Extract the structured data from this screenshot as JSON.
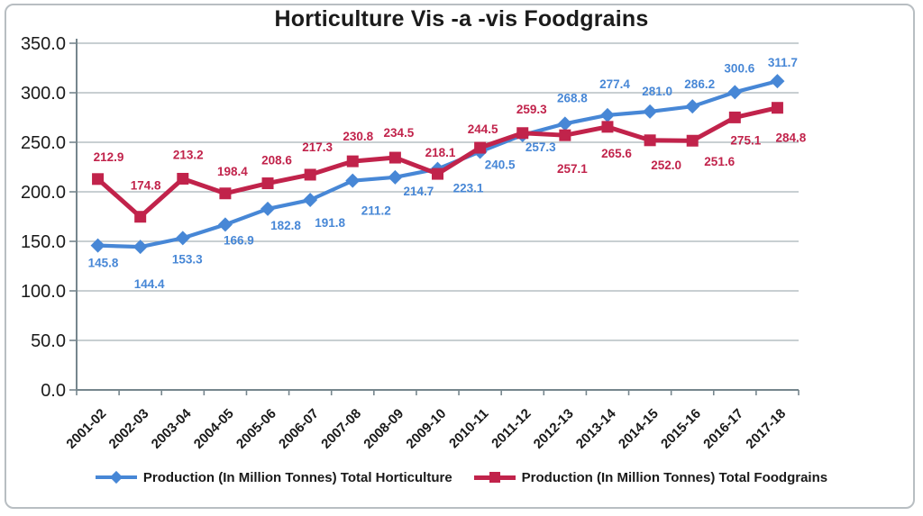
{
  "title": "Horticulture Vis -a -vis Foodgrains",
  "chart_data": {
    "type": "line",
    "title": "Horticulture Vis -a -vis Foodgrains",
    "categories": [
      "2001-02",
      "2002-03",
      "2003-04",
      "2004-05",
      "2005-06",
      "2006-07",
      "2007-08",
      "2008-09",
      "2009-10",
      "2010-11",
      "2011-12",
      "2012-13",
      "2013-14",
      "2014-15",
      "2015-16",
      "2016-17",
      "2017-18"
    ],
    "series": [
      {
        "key": "horticulture",
        "name": "Production (In Million Tonnes) Total Horticulture",
        "color": "#4787D6",
        "marker": "diamond",
        "values": [
          145.8,
          144.4,
          153.3,
          166.9,
          182.8,
          191.8,
          211.2,
          214.7,
          223.1,
          240.5,
          257.3,
          268.8,
          277.4,
          281.0,
          286.2,
          300.6,
          311.7
        ]
      },
      {
        "key": "foodgrains",
        "name": "Production (In Million Tonnes) Total Foodgrains",
        "color": "#C1234B",
        "marker": "square",
        "values": [
          212.9,
          174.8,
          213.2,
          198.4,
          208.6,
          217.3,
          230.8,
          234.5,
          218.1,
          244.5,
          259.3,
          257.1,
          265.6,
          252.0,
          251.6,
          275.1,
          284.8
        ]
      }
    ],
    "ylim": [
      0,
      350
    ],
    "ytick_step": 50,
    "ytick_labels": [
      "0.0",
      "50.0",
      "100.0",
      "150.0",
      "200.0",
      "250.0",
      "300.0",
      "350.0"
    ],
    "grid": "horizontal",
    "legend_position": "bottom",
    "data_labels": "on",
    "layout": {
      "grid_color": "#A6B2B8",
      "axis_color": "#76868D",
      "text_color": "#1A1A1A",
      "label_offsets": {
        "horticulture": [
          [
            6,
            24
          ],
          [
            10,
            46
          ],
          [
            5,
            28
          ],
          [
            15,
            22
          ],
          [
            20,
            23
          ],
          [
            22,
            30
          ],
          [
            26,
            38
          ],
          [
            26,
            20
          ],
          [
            34,
            26
          ],
          [
            22,
            19
          ],
          [
            20,
            18
          ],
          [
            8,
            -24
          ],
          [
            8,
            -30
          ],
          [
            8,
            -18
          ],
          [
            8,
            -20
          ],
          [
            5,
            -22
          ],
          [
            6,
            -16
          ]
        ],
        "foodgrains": [
          [
            12,
            -20
          ],
          [
            6,
            -30
          ],
          [
            6,
            -22
          ],
          [
            8,
            -20
          ],
          [
            10,
            -21
          ],
          [
            8,
            -26
          ],
          [
            6,
            -23
          ],
          [
            4,
            -23
          ],
          [
            3,
            -19
          ],
          [
            3,
            -16
          ],
          [
            10,
            -22
          ],
          [
            8,
            42
          ],
          [
            10,
            34
          ],
          [
            18,
            32
          ],
          [
            30,
            28
          ],
          [
            12,
            30
          ],
          [
            15,
            38
          ]
        ]
      }
    }
  }
}
